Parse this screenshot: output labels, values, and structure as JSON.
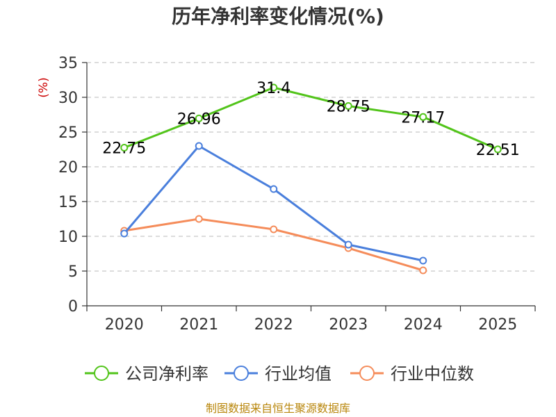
{
  "chart_data": {
    "type": "line",
    "title": "历年净利率变化情况(%)",
    "ylabel": "(%)",
    "xlabel": "",
    "categories": [
      "2020",
      "2021",
      "2022",
      "2023",
      "2024",
      "2025"
    ],
    "ylim": [
      0,
      35
    ],
    "yticks": [
      0,
      5,
      10,
      15,
      20,
      25,
      30,
      35
    ],
    "grid": true,
    "legend_position": "bottom",
    "series": [
      {
        "name": "公司净利率",
        "color": "#52c41a",
        "values": [
          22.75,
          26.96,
          31.4,
          28.75,
          27.17,
          22.51
        ],
        "labels": [
          "22.75",
          "26.96",
          "31.4",
          "28.75",
          "27.17",
          "22.51"
        ],
        "show_labels": true
      },
      {
        "name": "行业均值",
        "color": "#4a7fdc",
        "values": [
          10.4,
          23.0,
          16.8,
          8.8,
          6.5,
          null
        ],
        "show_labels": false
      },
      {
        "name": "行业中位数",
        "color": "#f58c5a",
        "values": [
          10.8,
          12.5,
          11.0,
          8.3,
          5.1,
          null
        ],
        "show_labels": false
      }
    ]
  },
  "source": "制图数据来自恒生聚源数据库"
}
